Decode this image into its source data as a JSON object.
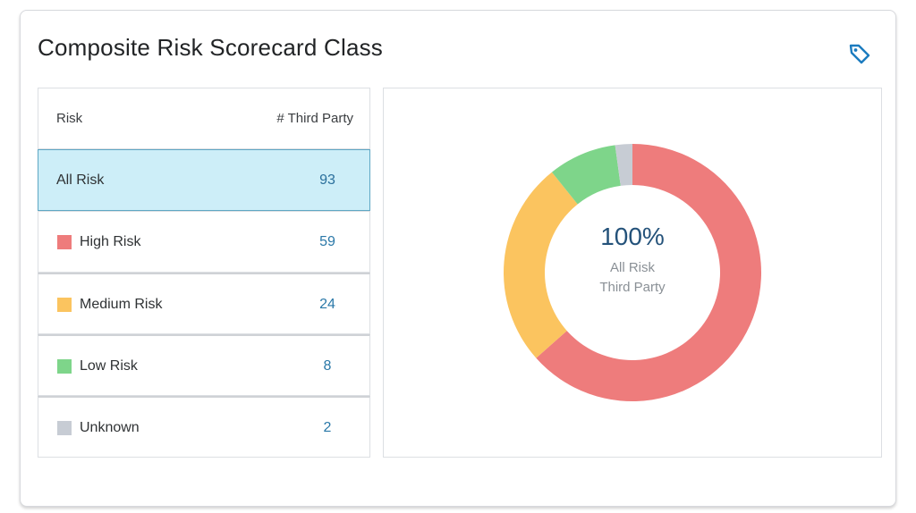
{
  "card": {
    "title": "Composite Risk Scorecard Class",
    "tag_icon": "tag-icon"
  },
  "table": {
    "headers": {
      "risk": "Risk",
      "count": "# Third Party"
    },
    "rows": [
      {
        "label": "All Risk",
        "value": "93",
        "color": "",
        "selected": true
      },
      {
        "label": "High Risk",
        "value": "59",
        "color": "#ee7c7c",
        "selected": false
      },
      {
        "label": "Medium Risk",
        "value": "24",
        "color": "#fbc45f",
        "selected": false
      },
      {
        "label": "Low Risk",
        "value": "8",
        "color": "#7ed58a",
        "selected": false
      },
      {
        "label": "Unknown",
        "value": "2",
        "color": "#c7ccd4",
        "selected": false
      }
    ]
  },
  "donut": {
    "center_value": "100%",
    "center_line1": "All Risk",
    "center_line2": "Third Party"
  },
  "chart_data": {
    "type": "pie",
    "categories": [
      "High Risk",
      "Medium Risk",
      "Low Risk",
      "Unknown"
    ],
    "values": [
      59,
      24,
      8,
      2
    ],
    "colors": [
      "#ee7c7c",
      "#fbc45f",
      "#7ed58a",
      "#c7ccd4"
    ],
    "title": "",
    "donut": true
  },
  "colors": {
    "accent": "#2a78a8",
    "selected_bg": "#cdeef8",
    "selected_border": "#5fa7c4"
  }
}
